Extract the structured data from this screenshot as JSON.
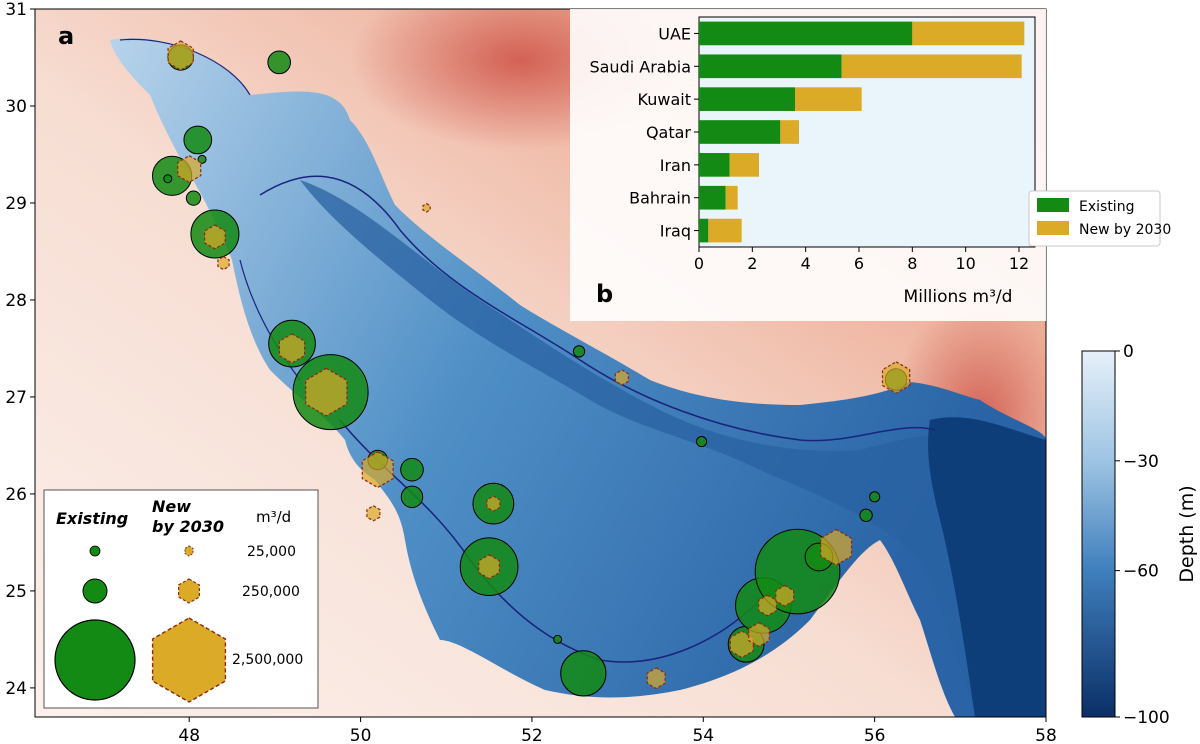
{
  "panel_a": {
    "label": "a",
    "x_ticks": [
      "48",
      "50",
      "52",
      "54",
      "56",
      "58"
    ],
    "y_ticks": [
      "24",
      "25",
      "26",
      "27",
      "28",
      "29",
      "30",
      "31"
    ],
    "xlim": [
      46.2,
      58
    ],
    "ylim": [
      23.7,
      31
    ]
  },
  "colorbar": {
    "label": "Depth (m)",
    "ticks": [
      "0",
      "−30",
      "−60",
      "−100"
    ],
    "range": [
      -100,
      0
    ]
  },
  "size_legend": {
    "existing_label": "Existing",
    "new_label_line1": "New",
    "new_label_line2": "by 2030",
    "unit_label": "m³/d",
    "rows": [
      "25,000",
      "250,000",
      "2,500,000"
    ]
  },
  "colors": {
    "existing": "#138a13",
    "new": "#dbaa27",
    "new_edge": "#8b2a10",
    "water_shallow": "#dcebf7",
    "water_deep": "#0b3b74",
    "contour": "#1a237e"
  },
  "plants": {
    "existing": [
      {
        "lon": 47.9,
        "lat": 30.5,
        "capacity_m3d": 250000
      },
      {
        "lon": 49.05,
        "lat": 30.45,
        "capacity_m3d": 200000
      },
      {
        "lon": 48.1,
        "lat": 29.65,
        "capacity_m3d": 300000
      },
      {
        "lon": 47.8,
        "lat": 29.28,
        "capacity_m3d": 600000
      },
      {
        "lon": 48.05,
        "lat": 29.05,
        "capacity_m3d": 80000
      },
      {
        "lon": 48.3,
        "lat": 28.68,
        "capacity_m3d": 900000
      },
      {
        "lon": 49.2,
        "lat": 27.55,
        "capacity_m3d": 850000
      },
      {
        "lon": 49.65,
        "lat": 27.05,
        "capacity_m3d": 2200000
      },
      {
        "lon": 50.2,
        "lat": 26.35,
        "capacity_m3d": 150000
      },
      {
        "lon": 50.6,
        "lat": 26.25,
        "capacity_m3d": 200000
      },
      {
        "lon": 50.6,
        "lat": 25.97,
        "capacity_m3d": 180000
      },
      {
        "lon": 51.55,
        "lat": 25.9,
        "capacity_m3d": 650000
      },
      {
        "lon": 51.5,
        "lat": 25.25,
        "capacity_m3d": 1300000
      },
      {
        "lon": 52.55,
        "lat": 27.47,
        "capacity_m3d": 50000
      },
      {
        "lon": 53.98,
        "lat": 26.54,
        "capacity_m3d": 40000
      },
      {
        "lon": 52.6,
        "lat": 24.15,
        "capacity_m3d": 800000
      },
      {
        "lon": 54.5,
        "lat": 24.45,
        "capacity_m3d": 500000
      },
      {
        "lon": 54.7,
        "lat": 24.85,
        "capacity_m3d": 1200000
      },
      {
        "lon": 55.1,
        "lat": 25.2,
        "capacity_m3d": 2800000
      },
      {
        "lon": 55.35,
        "lat": 25.35,
        "capacity_m3d": 300000
      },
      {
        "lon": 55.9,
        "lat": 25.78,
        "capacity_m3d": 60000
      },
      {
        "lon": 56.0,
        "lat": 25.97,
        "capacity_m3d": 40000
      },
      {
        "lon": 56.25,
        "lat": 27.18,
        "capacity_m3d": 180000
      },
      {
        "lon": 52.3,
        "lat": 24.5,
        "capacity_m3d": 25000
      },
      {
        "lon": 48.15,
        "lat": 29.45,
        "capacity_m3d": 25000
      },
      {
        "lon": 47.75,
        "lat": 29.25,
        "capacity_m3d": 25000
      }
    ],
    "new": [
      {
        "lon": 47.9,
        "lat": 30.52,
        "capacity_m3d": 300000
      },
      {
        "lon": 48.0,
        "lat": 29.35,
        "capacity_m3d": 250000
      },
      {
        "lon": 48.3,
        "lat": 28.65,
        "capacity_m3d": 200000
      },
      {
        "lon": 48.4,
        "lat": 28.38,
        "capacity_m3d": 60000
      },
      {
        "lon": 49.2,
        "lat": 27.5,
        "capacity_m3d": 300000
      },
      {
        "lon": 49.6,
        "lat": 27.05,
        "capacity_m3d": 800000
      },
      {
        "lon": 50.2,
        "lat": 26.25,
        "capacity_m3d": 450000
      },
      {
        "lon": 50.15,
        "lat": 25.8,
        "capacity_m3d": 80000
      },
      {
        "lon": 51.55,
        "lat": 25.9,
        "capacity_m3d": 80000
      },
      {
        "lon": 51.5,
        "lat": 25.25,
        "capacity_m3d": 200000
      },
      {
        "lon": 53.05,
        "lat": 27.2,
        "capacity_m3d": 80000
      },
      {
        "lon": 53.45,
        "lat": 24.1,
        "capacity_m3d": 150000
      },
      {
        "lon": 54.45,
        "lat": 24.45,
        "capacity_m3d": 250000
      },
      {
        "lon": 54.65,
        "lat": 24.55,
        "capacity_m3d": 200000
      },
      {
        "lon": 54.75,
        "lat": 24.85,
        "capacity_m3d": 150000
      },
      {
        "lon": 54.95,
        "lat": 24.95,
        "capacity_m3d": 150000
      },
      {
        "lon": 55.55,
        "lat": 25.45,
        "capacity_m3d": 450000
      },
      {
        "lon": 56.25,
        "lat": 27.2,
        "capacity_m3d": 350000
      },
      {
        "lon": 50.77,
        "lat": 28.95,
        "capacity_m3d": 25000
      }
    ]
  },
  "chart_data": {
    "type": "bar",
    "orientation": "horizontal",
    "stacked": true,
    "label": "b",
    "categories": [
      "UAE",
      "Saudi Arabia",
      "Kuwait",
      "Qatar",
      "Iran",
      "Bahrain",
      "Iraq"
    ],
    "series": [
      {
        "name": "Existing",
        "values": [
          8.0,
          5.35,
          3.6,
          3.05,
          1.15,
          1.0,
          0.35
        ]
      },
      {
        "name": "New by 2030",
        "values": [
          4.2,
          6.75,
          2.5,
          0.7,
          1.1,
          0.45,
          1.25
        ]
      }
    ],
    "xlabel": "Millions m³/d",
    "xlim": [
      0,
      12.6
    ],
    "x_ticks": [
      "0",
      "2",
      "4",
      "6",
      "8",
      "10",
      "12"
    ],
    "legend_position": "lower-right"
  }
}
